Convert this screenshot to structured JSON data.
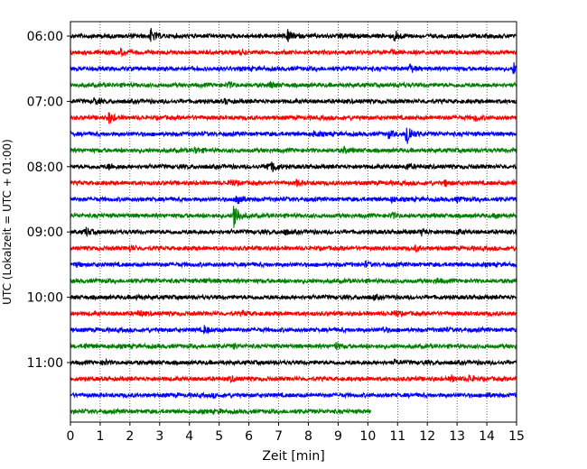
{
  "chart_data": {
    "type": "line",
    "title": "",
    "xlabel": "Zeit  [min]",
    "ylabel": "UTC (Lokalzeit = UTC + 01:00)",
    "xlim": [
      0,
      15
    ],
    "x_ticks": [
      0,
      1,
      2,
      3,
      4,
      5,
      6,
      7,
      8,
      9,
      10,
      11,
      12,
      13,
      14,
      15
    ],
    "x_tick_labels": [
      "0",
      "1",
      "2",
      "3",
      "4",
      "5",
      "6",
      "7",
      "8",
      "9",
      "10",
      "11",
      "12",
      "13",
      "14",
      "15"
    ],
    "y_tick_labels": [
      "06:00",
      "07:00",
      "08:00",
      "09:00",
      "10:00",
      "11:00"
    ],
    "minutes_per_trace": 15,
    "grid_x": true,
    "grid_style": "dotted",
    "legend": "none",
    "color_cycle": [
      "#000000",
      "#ff0000",
      "#0000ff",
      "#008000"
    ],
    "series": [
      {
        "start": "06:00",
        "end_min": 15,
        "events": [
          {
            "t": 2.7,
            "amp": 1.2
          },
          {
            "t": 7.3,
            "amp": 1.0
          },
          {
            "t": 10.9,
            "amp": 1.0
          },
          {
            "t": 9.0,
            "amp": 0.4
          }
        ]
      },
      {
        "start": "06:15",
        "end_min": 15,
        "events": [
          {
            "t": 1.7,
            "amp": 0.5
          },
          {
            "t": 5.7,
            "amp": 0.3
          },
          {
            "t": 10.8,
            "amp": 0.4
          }
        ]
      },
      {
        "start": "06:30",
        "end_min": 15,
        "events": [
          {
            "t": 11.4,
            "amp": 0.8
          },
          {
            "t": 14.9,
            "amp": 1.0
          }
        ]
      },
      {
        "start": "06:45",
        "end_min": 15,
        "events": [
          {
            "t": 5.3,
            "amp": 0.5
          },
          {
            "t": 6.7,
            "amp": 0.5
          },
          {
            "t": 11.0,
            "amp": 0.3
          }
        ]
      },
      {
        "start": "07:00",
        "end_min": 15,
        "events": [
          {
            "t": 0.8,
            "amp": 0.6
          },
          {
            "t": 5.2,
            "amp": 0.3
          }
        ]
      },
      {
        "start": "07:15",
        "end_min": 15,
        "events": [
          {
            "t": 1.3,
            "amp": 1.0
          },
          {
            "t": 13.6,
            "amp": 0.5
          }
        ]
      },
      {
        "start": "07:30",
        "end_min": 15,
        "events": [
          {
            "t": 11.3,
            "amp": 2.8
          },
          {
            "t": 8.2,
            "amp": 0.5
          },
          {
            "t": 10.7,
            "amp": 0.6
          }
        ]
      },
      {
        "start": "07:45",
        "end_min": 15,
        "events": [
          {
            "t": 4.2,
            "amp": 0.5
          },
          {
            "t": 9.2,
            "amp": 0.4
          },
          {
            "t": 14.9,
            "amp": 0.4
          }
        ]
      },
      {
        "start": "08:00",
        "end_min": 15,
        "events": [
          {
            "t": 1.3,
            "amp": 0.5
          },
          {
            "t": 6.6,
            "amp": 0.6
          },
          {
            "t": 6.8,
            "amp": 0.9
          },
          {
            "t": 11.3,
            "amp": 0.5
          }
        ]
      },
      {
        "start": "08:15",
        "end_min": 15,
        "events": [
          {
            "t": 5.4,
            "amp": 0.6
          },
          {
            "t": 7.6,
            "amp": 0.5
          },
          {
            "t": 12.6,
            "amp": 0.5
          },
          {
            "t": 14.9,
            "amp": 0.5
          }
        ]
      },
      {
        "start": "08:30",
        "end_min": 15,
        "events": [
          {
            "t": 5.6,
            "amp": 1.5
          },
          {
            "t": 10.8,
            "amp": 0.4
          },
          {
            "t": 13.0,
            "amp": 0.4
          }
        ]
      },
      {
        "start": "08:45",
        "end_min": 15,
        "events": [
          {
            "t": 5.5,
            "amp": 3.0
          },
          {
            "t": 10.8,
            "amp": 0.5
          },
          {
            "t": 14.3,
            "amp": 0.4
          }
        ]
      },
      {
        "start": "09:00",
        "end_min": 15,
        "events": [
          {
            "t": 0.5,
            "amp": 0.8
          },
          {
            "t": 7.2,
            "amp": 0.4
          },
          {
            "t": 11.8,
            "amp": 0.5
          },
          {
            "t": 13.0,
            "amp": 0.4
          }
        ]
      },
      {
        "start": "09:15",
        "end_min": 15,
        "events": [
          {
            "t": 2.0,
            "amp": 0.5
          },
          {
            "t": 11.6,
            "amp": 0.4
          }
        ]
      },
      {
        "start": "09:30",
        "end_min": 15,
        "events": [
          {
            "t": 9.9,
            "amp": 0.4
          },
          {
            "t": 0.2,
            "amp": 0.3
          }
        ]
      },
      {
        "start": "09:45",
        "end_min": 15,
        "events": [
          {
            "t": 12.3,
            "amp": 0.4
          },
          {
            "t": 4.5,
            "amp": 0.3
          }
        ]
      },
      {
        "start": "10:00",
        "end_min": 15,
        "events": [
          {
            "t": 2.2,
            "amp": 0.3
          },
          {
            "t": 10.2,
            "amp": 0.3
          }
        ]
      },
      {
        "start": "10:15",
        "end_min": 15,
        "events": [
          {
            "t": 2.3,
            "amp": 0.5
          },
          {
            "t": 10.9,
            "amp": 0.6
          },
          {
            "t": 5.8,
            "amp": 0.3
          }
        ]
      },
      {
        "start": "10:30",
        "end_min": 15,
        "events": [
          {
            "t": 4.5,
            "amp": 0.6
          },
          {
            "t": 10.5,
            "amp": 0.4
          },
          {
            "t": 12.5,
            "amp": 0.3
          }
        ]
      },
      {
        "start": "10:45",
        "end_min": 15,
        "events": [
          {
            "t": 8.9,
            "amp": 0.6
          },
          {
            "t": 0.5,
            "amp": 0.3
          },
          {
            "t": 5.5,
            "amp": 0.3
          }
        ]
      },
      {
        "start": "11:00",
        "end_min": 15,
        "events": [
          {
            "t": 1.1,
            "amp": 0.4
          },
          {
            "t": 10.9,
            "amp": 0.3
          }
        ]
      },
      {
        "start": "11:15",
        "end_min": 15,
        "events": [
          {
            "t": 13.4,
            "amp": 0.6
          },
          {
            "t": 12.8,
            "amp": 0.5
          },
          {
            "t": 5.4,
            "amp": 0.4
          }
        ]
      },
      {
        "start": "11:30",
        "end_min": 15,
        "events": [
          {
            "t": 14.0,
            "amp": 0.3
          },
          {
            "t": 4.8,
            "amp": 0.2
          }
        ]
      },
      {
        "start": "11:45",
        "end_min": 10.1,
        "events": [
          {
            "t": 5.0,
            "amp": 0.2
          }
        ]
      }
    ]
  }
}
